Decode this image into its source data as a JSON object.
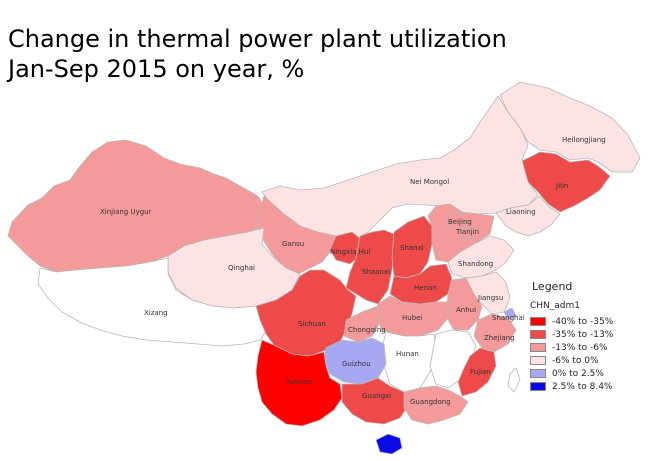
{
  "title_line1": "Change in thermal power plant utilization",
  "title_line2": "Jan-Sep 2015 on year, %",
  "legend": {
    "title": "Legend",
    "layer": "CHN_adm1",
    "items": [
      {
        "label": "-40% to -35%",
        "color": "#ff0000"
      },
      {
        "label": "-35% to -13%",
        "color": "#ee4a4a"
      },
      {
        "label": "-13% to -6%",
        "color": "#f59a9a"
      },
      {
        "label": "-6% to 0%",
        "color": "#fde3e3"
      },
      {
        "label": "0% to 2.5%",
        "color": "#a8a8f2"
      },
      {
        "label": "2.5% to 8.4%",
        "color": "#0a0ae6"
      }
    ]
  },
  "provinces": {
    "heilongjiang": "Heilongjiang",
    "jilin": "Jilin",
    "neimongol": "Nei Mongol",
    "liaoning": "Liaoning",
    "xinjiang": "Xinjiang Uygur",
    "gansu": "Gansu",
    "beijing": "Beijing",
    "tianjin": "Tianjin",
    "ningxia": "Ningxia Hui",
    "shanxi": "Shanxi",
    "qinghai": "Qinghai",
    "shaanxi": "Shaanxi",
    "shandong": "Shandong",
    "henan": "Henan",
    "jiangsu": "Jiangsu",
    "xizang": "Xizang",
    "sichuan": "Sichuan",
    "anhui": "Anhui",
    "shanghai": "Shanghai",
    "hubei": "Hubei",
    "chongqing": "Chongqing",
    "zhejiang": "Zhejiang",
    "hunan": "Hunan",
    "guizhou": "Guizhou",
    "fujian": "Fujian",
    "yunnan": "Yunnan",
    "guangxi": "Guangxi",
    "guangdong": "Guangdong"
  }
}
